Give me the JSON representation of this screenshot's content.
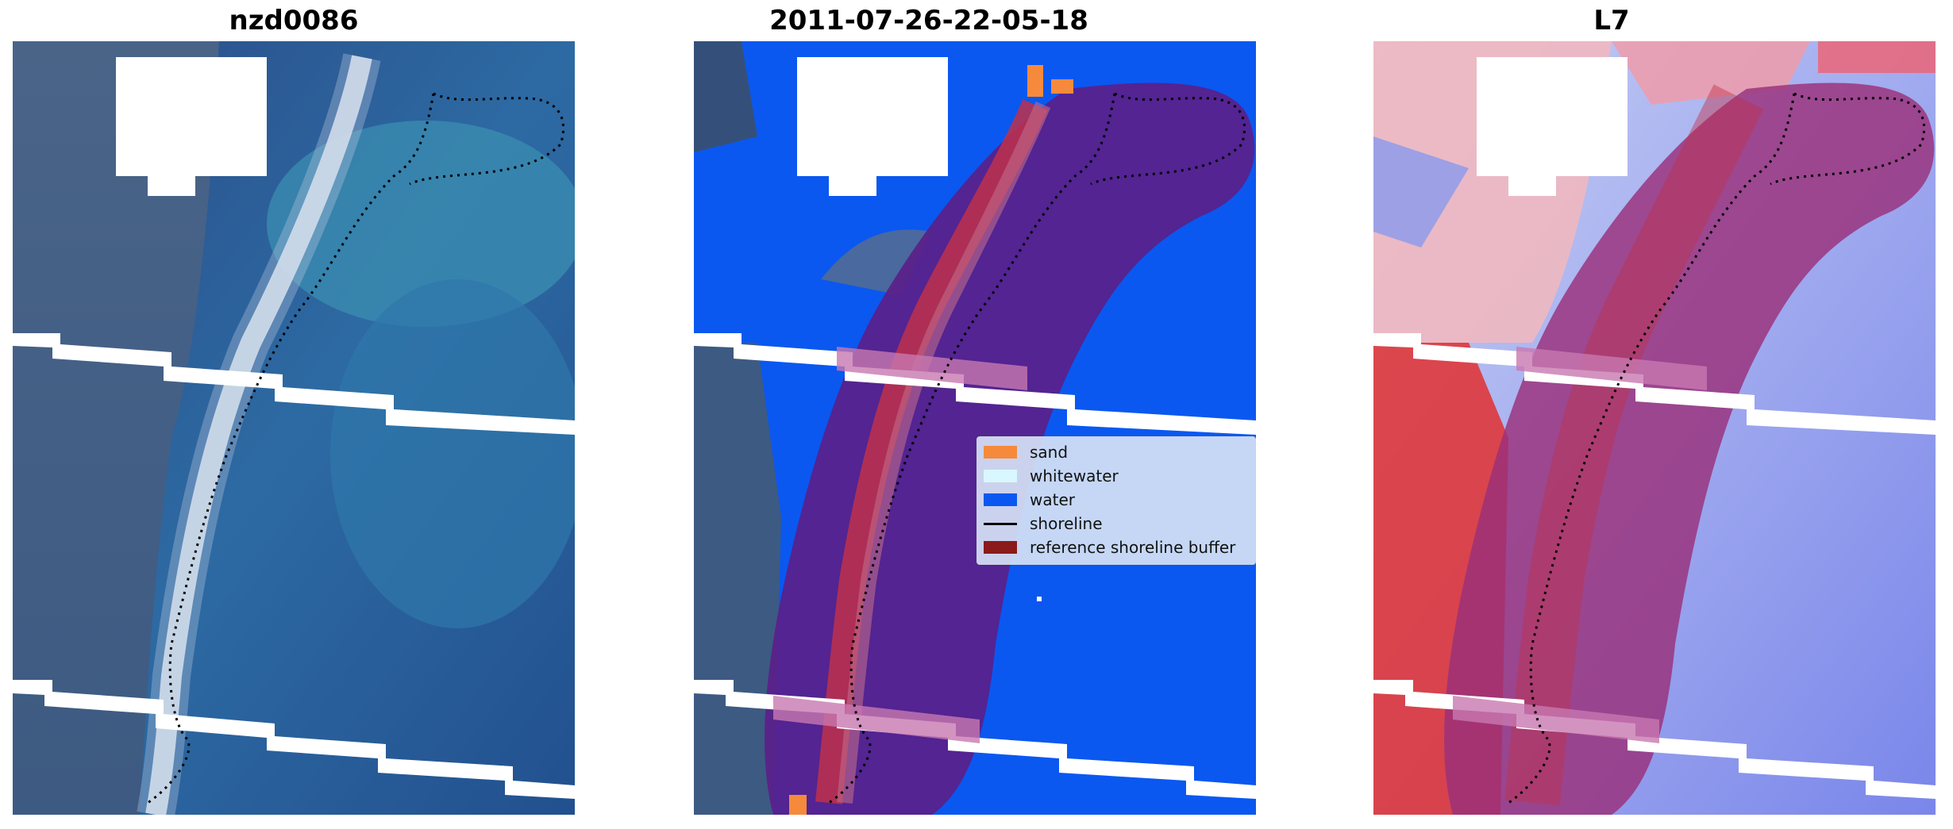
{
  "panels": {
    "left": {
      "title": "nzd0086"
    },
    "center": {
      "title": "2011-07-26-22-05-18"
    },
    "right": {
      "title": "L7"
    }
  },
  "legend": {
    "items": [
      {
        "label": "sand",
        "color": "#f58a3c",
        "kind": "patch"
      },
      {
        "label": "whitewater",
        "color": "#d9f7ff",
        "kind": "patch"
      },
      {
        "label": "water",
        "color": "#0a58f0",
        "kind": "patch"
      },
      {
        "label": "shoreline",
        "color": "#000000",
        "kind": "line"
      },
      {
        "label": "reference shoreline buffer",
        "color": "#8b1a1a",
        "kind": "patch"
      }
    ]
  },
  "colors": {
    "ocean_deep": "#1f3f7a",
    "ocean_mid": "#2f6fa8",
    "water_class": "#0a58f0",
    "buffer_overlay": "#5a1f8a",
    "sand_red": "#c0304a",
    "index_red": "#e23030",
    "index_blue": "#6a78e8"
  }
}
